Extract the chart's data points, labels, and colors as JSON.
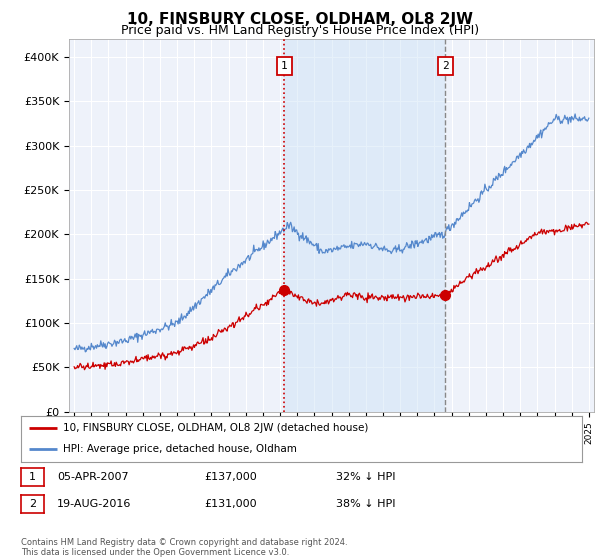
{
  "title": "10, FINSBURY CLOSE, OLDHAM, OL8 2JW",
  "subtitle": "Price paid vs. HM Land Registry's House Price Index (HPI)",
  "ylim": [
    0,
    420000
  ],
  "yticks": [
    0,
    50000,
    100000,
    150000,
    200000,
    250000,
    300000,
    350000,
    400000
  ],
  "ytick_labels": [
    "£0",
    "£50K",
    "£100K",
    "£150K",
    "£200K",
    "£250K",
    "£300K",
    "£350K",
    "£400K"
  ],
  "hpi_color": "#5588cc",
  "price_color": "#cc0000",
  "vline1_color": "#cc0000",
  "vline1_style": "dotted",
  "vline2_color": "#888888",
  "vline2_style": "dashed",
  "shade_color": "#d0e4f7",
  "shade_alpha": 0.5,
  "sale1_date": 2007.26,
  "sale1_price": 137000,
  "sale1_label": "1",
  "sale2_date": 2016.63,
  "sale2_price": 131000,
  "sale2_label": "2",
  "legend_property": "10, FINSBURY CLOSE, OLDHAM, OL8 2JW (detached house)",
  "legend_hpi": "HPI: Average price, detached house, Oldham",
  "table_rows": [
    {
      "num": "1",
      "date": "05-APR-2007",
      "price": "£137,000",
      "hpi": "32% ↓ HPI"
    },
    {
      "num": "2",
      "date": "19-AUG-2016",
      "price": "£131,000",
      "hpi": "38% ↓ HPI"
    }
  ],
  "footnote": "Contains HM Land Registry data © Crown copyright and database right 2024.\nThis data is licensed under the Open Government Licence v3.0.",
  "bg_color": "#ffffff",
  "plot_bg_color": "#eef2fa",
  "grid_color": "#ffffff",
  "title_fontsize": 11,
  "subtitle_fontsize": 9,
  "axis_fontsize": 8,
  "xlim_left": 1994.7,
  "xlim_right": 2025.3
}
